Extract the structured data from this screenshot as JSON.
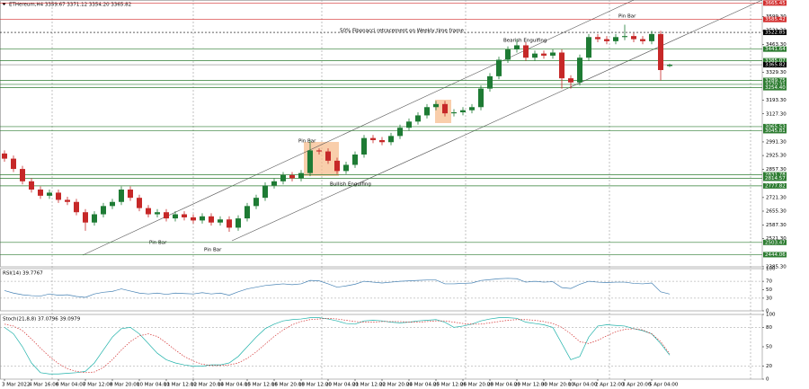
{
  "chart_data": [
    {
      "type": "candlestick",
      "title": "ETHereum,H4  3359.67 3371.12 3354.20 3365.82",
      "categories": [
        "3 Mar 2022",
        null,
        null,
        "4 Mar 16:00",
        null,
        null,
        "6 Mar 04:00",
        null,
        null,
        "7 Mar 12:00",
        null,
        null,
        "8 Mar 20:00",
        null,
        null,
        "10 Mar 04:00",
        null,
        null,
        "11 Mar 12:00",
        null,
        null,
        "12 Mar 20:00",
        null,
        null,
        "14 Mar 04:00",
        null,
        null,
        "15 Mar 12:00",
        null,
        null,
        "16 Mar 20:00",
        null,
        null,
        "18 Mar 12:00",
        null,
        null,
        "20 Mar 04:00",
        null,
        null,
        "21 Mar 12:00",
        null,
        null,
        "22 Mar 20:00",
        null,
        null,
        "24 Mar 04:00",
        null,
        null,
        "25 Mar 12:00",
        null,
        null,
        "26 Mar 20:00",
        null,
        null,
        "28 Mar 04:00",
        null,
        null,
        "29 Mar 12:00",
        null,
        null,
        "30 Mar 20:00",
        null,
        null,
        "1 Apr 04:00",
        null,
        null,
        "2 Apr 12:00",
        null,
        null,
        "3 Apr 20:00",
        null,
        null,
        "5 Apr 04:00",
        null,
        null
      ],
      "open": [
        2935,
        2910,
        2860,
        2800,
        2760,
        2730,
        2745,
        2710,
        2700,
        2650,
        2600,
        2640,
        2680,
        2700,
        2760,
        2720,
        2670,
        2640,
        2650,
        2620,
        2640,
        2625,
        2610,
        2630,
        2600,
        2615,
        2575,
        2620,
        2680,
        2720,
        2780,
        2800,
        2830,
        2815,
        2840,
        2950,
        2945,
        2900,
        2850,
        2880,
        2930,
        3010,
        3000,
        2990,
        3020,
        3060,
        3090,
        3120,
        3160,
        3175,
        3130,
        3135,
        3145,
        3160,
        3250,
        3310,
        3390,
        3440,
        3460,
        3400,
        3420,
        3410,
        3425,
        3300,
        3280,
        3400,
        3500,
        3490,
        3480,
        3500,
        3505,
        3490,
        3480,
        3515,
        3359.67
      ],
      "high": [
        2950,
        2925,
        2875,
        2815,
        2775,
        2760,
        2760,
        2725,
        2715,
        2665,
        2655,
        2695,
        2715,
        2775,
        2775,
        2735,
        2685,
        2665,
        2665,
        2655,
        2655,
        2640,
        2645,
        2645,
        2630,
        2630,
        2635,
        2695,
        2735,
        2795,
        2815,
        2845,
        2845,
        2855,
        3000,
        2960,
        2960,
        2915,
        2895,
        2945,
        3025,
        3025,
        3015,
        3035,
        3075,
        3105,
        3135,
        3175,
        3190,
        3190,
        3150,
        3160,
        3175,
        3265,
        3325,
        3405,
        3455,
        3490,
        3475,
        3435,
        3435,
        3440,
        3440,
        3315,
        3415,
        3515,
        3515,
        3505,
        3515,
        3560,
        3520,
        3505,
        3530,
        3530,
        3371.12
      ],
      "low": [
        2895,
        2845,
        2785,
        2745,
        2715,
        2715,
        2695,
        2685,
        2635,
        2560,
        2585,
        2625,
        2665,
        2685,
        2705,
        2655,
        2625,
        2625,
        2605,
        2605,
        2610,
        2595,
        2595,
        2585,
        2585,
        2555,
        2560,
        2605,
        2665,
        2705,
        2765,
        2785,
        2800,
        2800,
        2825,
        2930,
        2885,
        2835,
        2835,
        2865,
        2915,
        2985,
        2975,
        2975,
        3005,
        3045,
        3075,
        3105,
        3145,
        3115,
        3115,
        3120,
        3130,
        3145,
        3235,
        3295,
        3375,
        3425,
        3385,
        3385,
        3395,
        3395,
        3250,
        3250,
        3265,
        3385,
        3475,
        3465,
        3465,
        3485,
        3475,
        3465,
        3465,
        3290,
        3354.2
      ],
      "close": [
        2910,
        2860,
        2800,
        2760,
        2730,
        2745,
        2710,
        2700,
        2650,
        2600,
        2640,
        2680,
        2700,
        2760,
        2720,
        2670,
        2640,
        2650,
        2620,
        2640,
        2625,
        2610,
        2630,
        2600,
        2615,
        2575,
        2620,
        2680,
        2720,
        2780,
        2800,
        2830,
        2815,
        2840,
        2950,
        2945,
        2900,
        2850,
        2880,
        2930,
        3010,
        3000,
        2990,
        3020,
        3060,
        3090,
        3120,
        3160,
        3175,
        3130,
        3135,
        3145,
        3160,
        3250,
        3310,
        3390,
        3440,
        3460,
        3400,
        3420,
        3410,
        3425,
        3300,
        3280,
        3400,
        3500,
        3490,
        3480,
        3500,
        3505,
        3490,
        3480,
        3515,
        3340,
        3365.82
      ],
      "up_color": "#1e7b34",
      "down_color": "#c62828",
      "ylim": [
        2385,
        3680
      ],
      "yticks": [
        {
          "value": 3599.3,
          "label": "3599.30"
        },
        {
          "value": 3531.3,
          "label": "3531.30"
        },
        {
          "value": 3463.3,
          "label": "3463.30"
        },
        {
          "value": 3329.3,
          "label": "3329.30"
        },
        {
          "value": 3193.3,
          "label": "3193.30"
        },
        {
          "value": 3127.3,
          "label": "3127.30"
        },
        {
          "value": 2991.3,
          "label": "2991.30"
        },
        {
          "value": 2925.3,
          "label": "2925.30"
        },
        {
          "value": 2857.3,
          "label": "2857.30"
        },
        {
          "value": 2721.3,
          "label": "2721.30"
        },
        {
          "value": 2655.3,
          "label": "2655.30"
        },
        {
          "value": 2587.3,
          "label": "2587.30"
        },
        {
          "value": 2521.3,
          "label": "2521.30"
        },
        {
          "value": 2385.3,
          "label": "2385.30"
        }
      ],
      "levels": [
        {
          "value": 3665.45,
          "label": "3665.45",
          "color": "#d32f2f"
        },
        {
          "value": 3585.42,
          "label": "3585.42",
          "color": "#d32f2f"
        },
        {
          "value": 3522.85,
          "label": "3522.85",
          "color": "#000000",
          "style": "dashed"
        },
        {
          "value": 3441.64,
          "label": "3441.64",
          "color": "#2e7d32"
        },
        {
          "value": 3385.07,
          "label": "3385.07",
          "color": "#2e7d32"
        },
        {
          "value": 3365.82,
          "label": "3365.82",
          "color": "#000000",
          "style": "thin"
        },
        {
          "value": 3289.75,
          "label": "3289.75",
          "color": "#2e7d32"
        },
        {
          "value": 3270.31,
          "label": "3270.31",
          "color": "#2e7d32"
        },
        {
          "value": 3254.4,
          "label": "3254.40",
          "color": "#2e7d32"
        },
        {
          "value": 3065.53,
          "label": "3065.53",
          "color": "#2e7d32"
        },
        {
          "value": 3045.81,
          "label": "3045.81",
          "color": "#2e7d32"
        },
        {
          "value": 2831.78,
          "label": "2831.78",
          "color": "#2e7d32"
        },
        {
          "value": 2814.57,
          "label": "2814.57",
          "color": "#2e7d32"
        },
        {
          "value": 2777.82,
          "label": "2777.82",
          "color": "#2e7d32"
        },
        {
          "value": 2503.47,
          "label": "2503.47",
          "color": "#2e7d32"
        },
        {
          "value": 2444.06,
          "label": "2444.06",
          "color": "#2e7d32"
        }
      ],
      "annotations": [
        "50% Fibonacci retracement on Weekly time frame",
        "Bearish Engulfing",
        "Pin Bar",
        "Pin Bar",
        "Bullish Engulfing",
        "Pin Bar",
        "Pin Bar"
      ]
    },
    {
      "type": "line",
      "title": "RSI(14) 39.7767",
      "series": [
        {
          "color": "#4682b4",
          "values": [
            48,
            42,
            38,
            36,
            35,
            40,
            37,
            38,
            34,
            32,
            40,
            44,
            46,
            52,
            47,
            42,
            40,
            42,
            39,
            42,
            41,
            40,
            43,
            40,
            42,
            37,
            45,
            52,
            56,
            60,
            62,
            64,
            62,
            64,
            72,
            71,
            64,
            56,
            59,
            63,
            70,
            68,
            66,
            68,
            70,
            71,
            72,
            73,
            73,
            64,
            64,
            65,
            66,
            72,
            74,
            76,
            77,
            76,
            68,
            70,
            68,
            69,
            55,
            53,
            63,
            70,
            68,
            67,
            68,
            68,
            65,
            64,
            66,
            45,
            39.7767
          ]
        }
      ],
      "ylim": [
        0,
        100
      ],
      "yticks": [
        100,
        70,
        50,
        30,
        0
      ],
      "levels": [
        70,
        30
      ]
    },
    {
      "type": "line",
      "title": "Stoch(21,8,8) 37.0796 39.0979",
      "series": [
        {
          "color": "#20b2aa",
          "values": [
            80,
            70,
            50,
            25,
            10,
            8,
            8,
            9,
            10,
            12,
            25,
            45,
            65,
            78,
            80,
            70,
            55,
            40,
            30,
            25,
            22,
            20,
            20,
            22,
            22,
            25,
            35,
            50,
            65,
            78,
            85,
            90,
            92,
            93,
            95,
            95,
            93,
            90,
            86,
            85,
            90,
            91,
            90,
            88,
            87,
            88,
            90,
            91,
            92,
            88,
            80,
            82,
            85,
            90,
            93,
            95,
            95,
            94,
            88,
            86,
            84,
            80,
            55,
            30,
            35,
            65,
            82,
            84,
            83,
            82,
            78,
            75,
            70,
            55,
            37.0796
          ]
        },
        {
          "color": "#d32f2f",
          "dashed": true,
          "values": [
            85,
            82,
            75,
            62,
            48,
            35,
            24,
            16,
            12,
            10,
            11,
            18,
            30,
            45,
            58,
            67,
            70,
            66,
            56,
            45,
            35,
            28,
            23,
            21,
            21,
            22,
            25,
            32,
            42,
            54,
            66,
            76,
            84,
            89,
            92,
            93,
            94,
            93,
            91,
            89,
            88,
            88,
            89,
            89,
            89,
            88,
            88,
            89,
            90,
            90,
            88,
            86,
            85,
            85,
            87,
            89,
            91,
            92,
            92,
            91,
            89,
            86,
            80,
            70,
            58,
            55,
            60,
            67,
            73,
            77,
            78,
            76,
            70,
            58,
            39.0979
          ]
        }
      ],
      "ylim": [
        0,
        100
      ],
      "yticks": [
        100,
        80,
        50,
        20,
        0
      ],
      "levels": [
        80,
        20
      ]
    }
  ]
}
